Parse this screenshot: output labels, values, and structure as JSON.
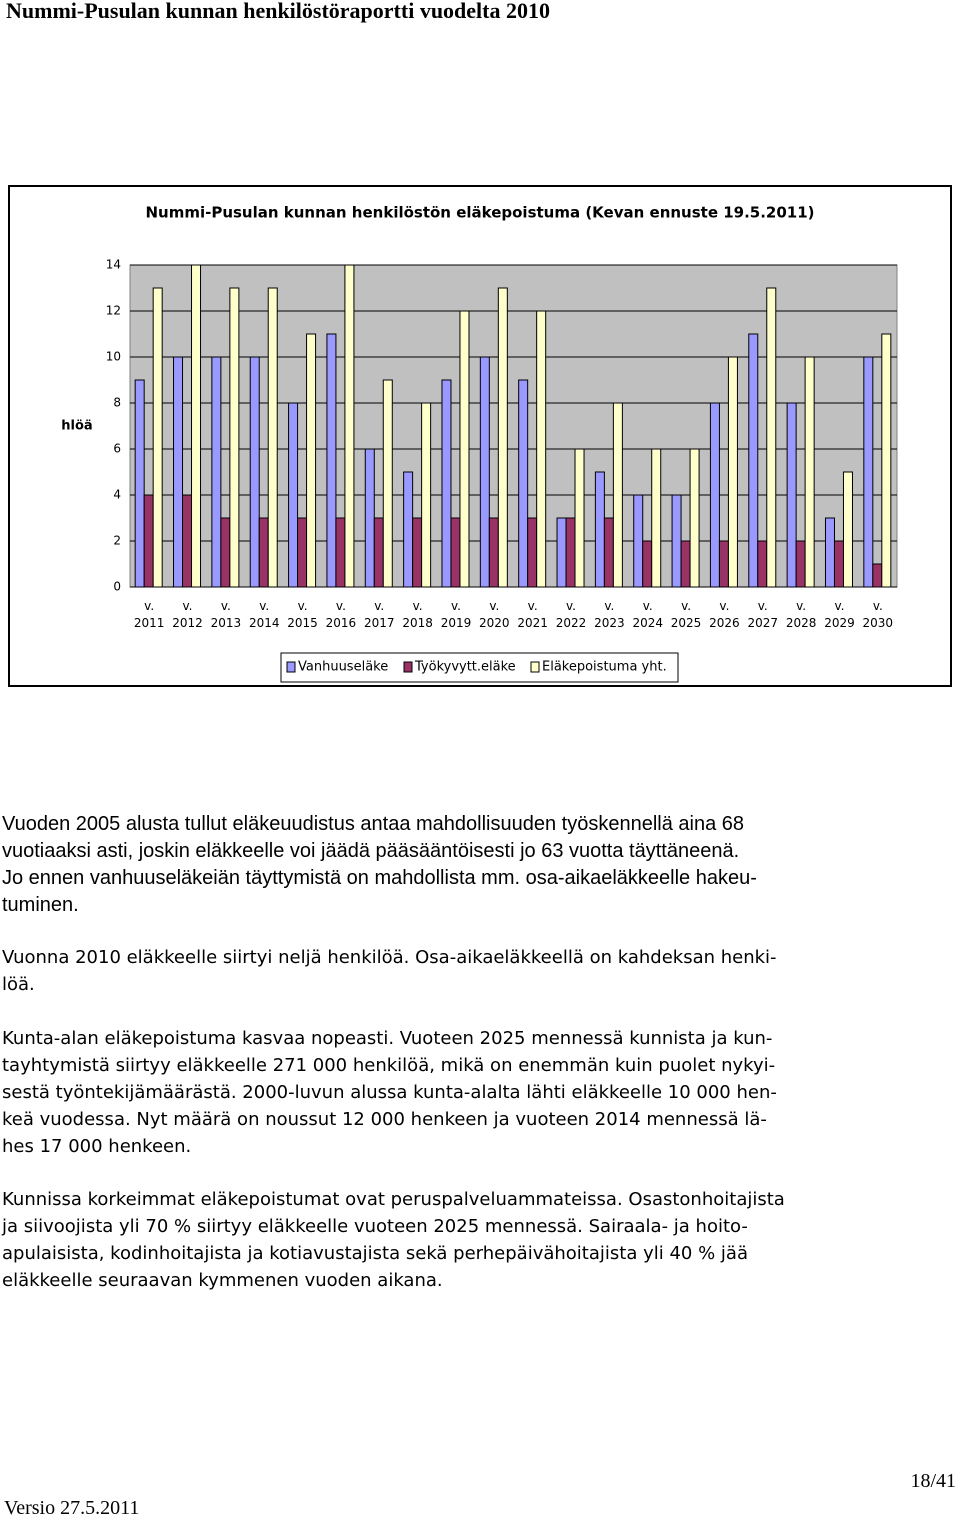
{
  "header": {
    "title": "Nummi-Pusulan kunnan henkilöstöraportti vuodelta 2010"
  },
  "chart_data": {
    "type": "bar",
    "title": "Nummi-Pusulan kunnan henkilöstön eläkepoistuma (Kevan ennuste 19.5.2011)",
    "y_label": "hlöä",
    "categories": [
      "v. 2011",
      "v. 2012",
      "v. 2013",
      "v. 2014",
      "v. 2015",
      "v. 2016",
      "v. 2017",
      "v. 2018",
      "v. 2019",
      "v. 2020",
      "v. 2021",
      "v. 2022",
      "v. 2023",
      "v. 2024",
      "v. 2025",
      "v. 2026",
      "v. 2027",
      "v. 2028",
      "v. 2029",
      "v. 2030"
    ],
    "series": [
      {
        "name": "Vanhuuseläke",
        "color": "#9999ff",
        "values": [
          9,
          10,
          10,
          10,
          8,
          11,
          6,
          5,
          9,
          10,
          9,
          3,
          5,
          4,
          4,
          8,
          11,
          8,
          3,
          10
        ]
      },
      {
        "name": "Työkyvytt.eläke",
        "color": "#993366",
        "values": [
          4,
          4,
          3,
          3,
          3,
          3,
          3,
          3,
          3,
          3,
          3,
          3,
          3,
          2,
          2,
          2,
          2,
          2,
          2,
          1
        ]
      },
      {
        "name": "Eläkepoistuma yht.",
        "color": "#ffffcc",
        "values": [
          13,
          14,
          13,
          13,
          11,
          14,
          9,
          8,
          12,
          13,
          12,
          6,
          8,
          6,
          6,
          10,
          13,
          10,
          5,
          11
        ]
      }
    ],
    "ylim": [
      0,
      14
    ],
    "yticks": [
      0,
      2,
      4,
      6,
      8,
      10,
      12,
      14
    ],
    "grid": true
  },
  "paragraphs": [
    {
      "lines": [
        "Vuoden 2005 alusta tullut eläkeuudistus antaa mahdollisuuden työskennellä aina 68",
        "vuotiaaksi asti, joskin eläkkeelle voi jäädä pääsääntöisesti jo 63 vuotta täyttäneenä.",
        "Jo ennen vanhuuseläkeiän täyttymistä on mahdollista mm. osa-aikaeläkkeelle hakeu-",
        "tuminen."
      ]
    },
    {
      "lines": [
        "Vuonna 2010 eläkkeelle siirtyi neljä henkilöä. Osa-aikaeläkkeellä on kahdeksan henki-",
        "löä."
      ]
    },
    {
      "lines": [
        "Kunta-alan eläkepoistuma kasvaa nopeasti. Vuoteen 2025 mennessä kunnista ja kun-",
        "tayhtymistä siirtyy eläkkeelle 271 000 henkilöä, mikä on enemmän kuin puolet nykyi-",
        "sestä työntekijämäärästä. 2000-luvun alussa kunta-alalta lähti eläkkeelle 10 000 hen-",
        "keä vuodessa. Nyt määrä on noussut 12 000 henkeen ja vuoteen 2014 mennessä lä-",
        "hes 17 000 henkeen."
      ]
    },
    {
      "lines": [
        "Kunnissa korkeimmat eläkepoistumat ovat peruspalveluammateissa. Osastonhoitajista",
        "ja siivoojista yli 70 % siirtyy eläkkeelle vuoteen 2025 mennessä. Sairaala- ja hoito-",
        "apulaisista, kodinhoitajista ja kotiavustajista sekä perhepäivähoitajista yli 40 % jää",
        "eläkkeelle seuraavan kymmenen vuoden aikana."
      ]
    }
  ],
  "footer": {
    "page": "18/41",
    "version": "Versio 27.5.2011"
  }
}
